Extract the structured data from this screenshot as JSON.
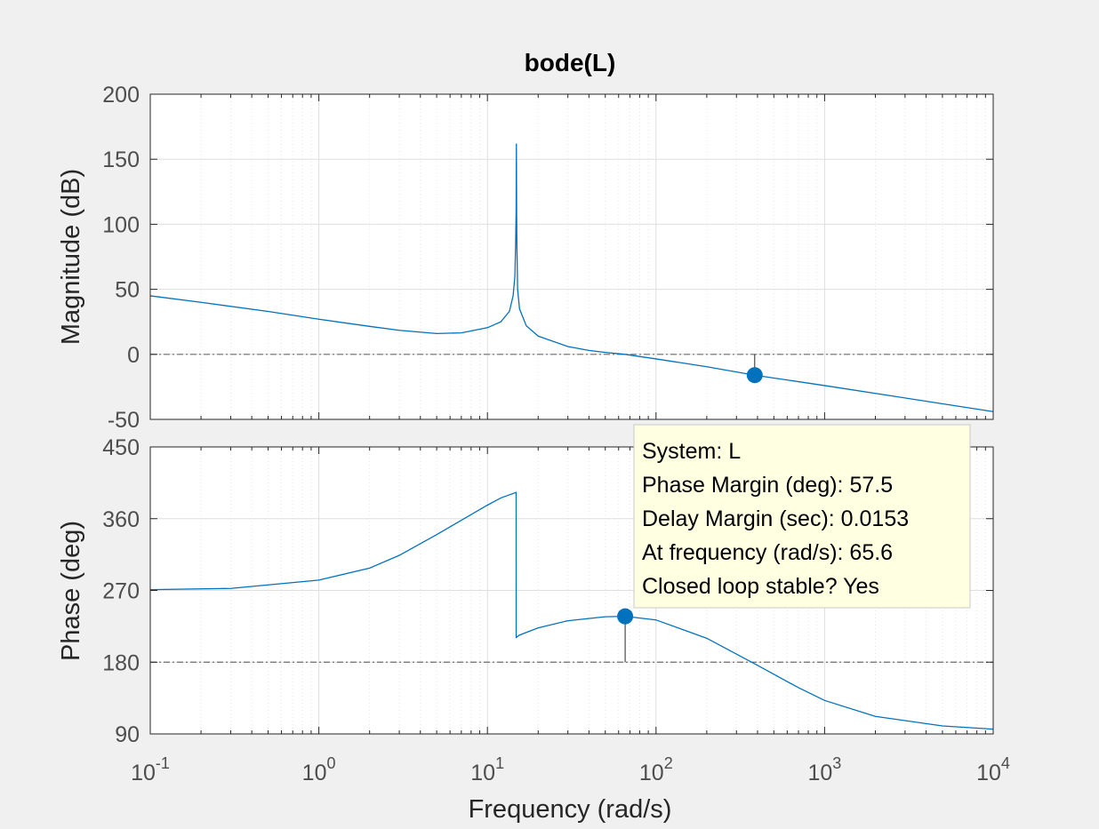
{
  "chart_data": {
    "type": "line",
    "title": "bode(L)",
    "xlabel": "Frequency  (rad/s)",
    "xscale": "log",
    "xlim": [
      0.1,
      10000
    ],
    "x_tick_labels": [
      {
        "base": "10",
        "exp": "-1"
      },
      {
        "base": "10",
        "exp": "0"
      },
      {
        "base": "10",
        "exp": "1"
      },
      {
        "base": "10",
        "exp": "2"
      },
      {
        "base": "10",
        "exp": "3"
      },
      {
        "base": "10",
        "exp": "4"
      }
    ],
    "grid": true,
    "line_color": "#0072bd",
    "marker_color": "#0072bd",
    "magnitude": {
      "ylabel": "Magnitude (dB)",
      "ylim": [
        -50,
        200
      ],
      "yticks": [
        "200",
        "150",
        "100",
        "50",
        "0",
        "-50"
      ],
      "reference_line": 0,
      "series": [
        {
          "x": [
            0.1,
            0.2,
            0.5,
            1,
            2,
            3,
            5,
            7,
            10,
            12,
            13.5,
            14.2,
            14.55,
            14.7,
            14.8,
            14.85,
            14.9,
            14.95,
            15.1,
            15.5,
            17,
            20,
            30,
            40,
            50,
            65.6,
            100,
            200,
            385,
            1000,
            10000
          ],
          "y": [
            45,
            40,
            33,
            27,
            21.5,
            18.5,
            16,
            16.5,
            20.5,
            25,
            33,
            45,
            60,
            85,
            110,
            162,
            110,
            85,
            50,
            35,
            22,
            14,
            6,
            3,
            1.5,
            0,
            -3.5,
            -9.5,
            -16,
            -24,
            -44
          ]
        }
      ],
      "marker": {
        "x": 385,
        "y": -16
      }
    },
    "phase": {
      "ylabel": "Phase (deg)",
      "ylim": [
        90,
        450
      ],
      "yticks": [
        "450",
        "360",
        "270",
        "180",
        "90"
      ],
      "reference_line": 180,
      "series": [
        {
          "x": [
            0.1,
            0.3,
            1,
            2,
            3,
            5,
            7,
            10,
            12,
            14.8,
            14.81,
            15.5,
            20,
            30,
            50,
            65.6,
            100,
            200,
            400,
            700,
            1000,
            2000,
            5000,
            10000
          ],
          "y": [
            271,
            272.5,
            283,
            298,
            314,
            340,
            358,
            377,
            386,
            393,
            211,
            214,
            223,
            232,
            237,
            237.5,
            233,
            210,
            176,
            148,
            132,
            112,
            100,
            96
          ]
        }
      ],
      "marker": {
        "x": 65.6,
        "y": 237.5
      }
    },
    "datatip": {
      "lines": [
        "System: L",
        "Phase Margin (deg): 57.5",
        "Delay Margin (sec): 0.0153",
        "At frequency (rad/s): 65.6",
        "Closed loop stable? Yes"
      ]
    }
  }
}
